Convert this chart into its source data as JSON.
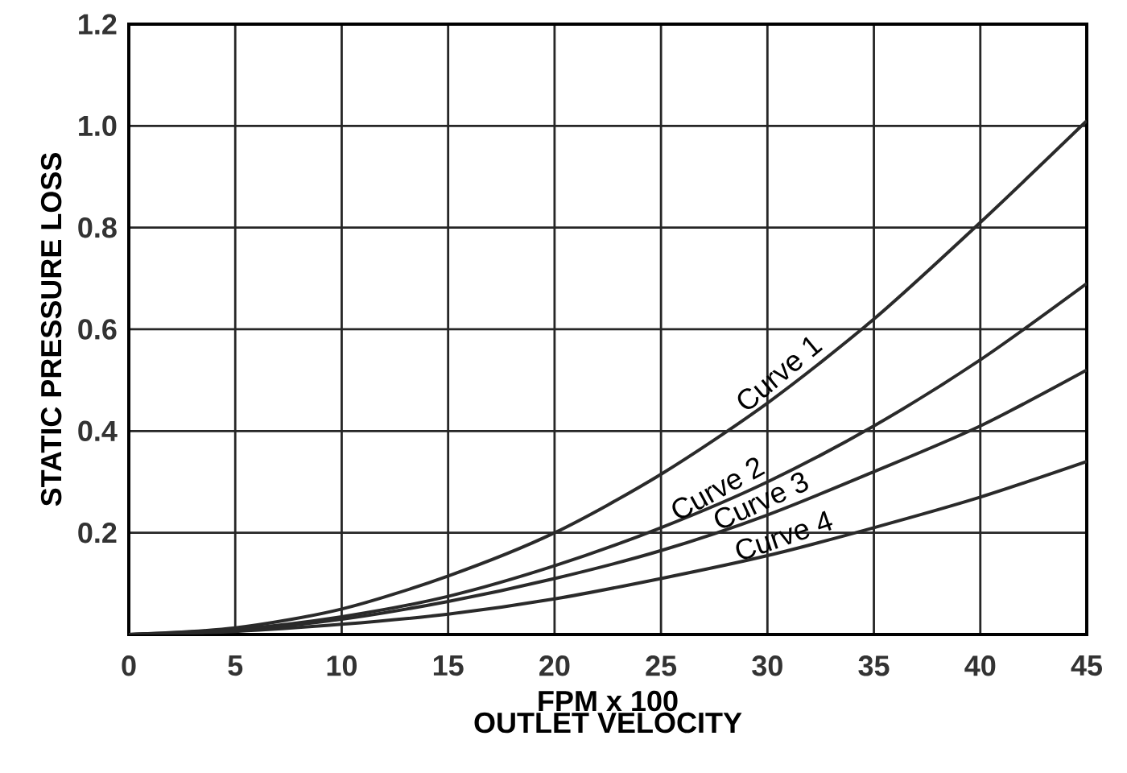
{
  "chart_data": {
    "type": "line",
    "xlabel": "FPM x 100",
    "ylabel": "STATIC PRESSURE LOSS",
    "x": [
      0,
      5,
      10,
      15,
      20,
      25,
      30,
      35,
      40,
      45
    ],
    "series": [
      {
        "color": "#2a2a2a",
        "values": [
          0,
          0.013,
          0.05,
          0.115,
          0.2,
          0.315,
          0.455,
          0.62,
          0.81,
          1.01
        ]
      },
      {
        "color": "#2a2a2a",
        "values": [
          0,
          0.01,
          0.035,
          0.075,
          0.135,
          0.21,
          0.3,
          0.41,
          0.54,
          0.69
        ]
      },
      {
        "color": "#2a2a2a",
        "values": [
          0,
          0.008,
          0.03,
          0.065,
          0.11,
          0.165,
          0.235,
          0.32,
          0.41,
          0.52
        ]
      },
      {
        "color": "#2a2a2a",
        "values": [
          0,
          0.006,
          0.02,
          0.04,
          0.07,
          0.11,
          0.155,
          0.21,
          0.27,
          0.34
        ]
      }
    ],
    "annotations": [
      {
        "text": "Curve 1",
        "x": 31,
        "y": 0.49
      },
      {
        "text": "Curve 2",
        "x": 28,
        "y": 0.26
      },
      {
        "text": "Curve 3",
        "x": 30,
        "y": 0.235
      },
      {
        "text": "Curve 4",
        "x": 31,
        "y": 0.165
      },
      "OUTLET VELOCITY"
    ],
    "xlim": [
      0,
      45
    ],
    "ylim": [
      0,
      1.2
    ],
    "xticks": [
      0,
      5,
      10,
      15,
      20,
      25,
      30,
      35,
      40,
      45
    ],
    "yticks": [
      0.2,
      0.4,
      0.6,
      0.8,
      {
        "value": 1.0,
        "label": "1.0"
      },
      1.2
    ],
    "grid": true,
    "marker": "none",
    "line_style": "solid"
  }
}
